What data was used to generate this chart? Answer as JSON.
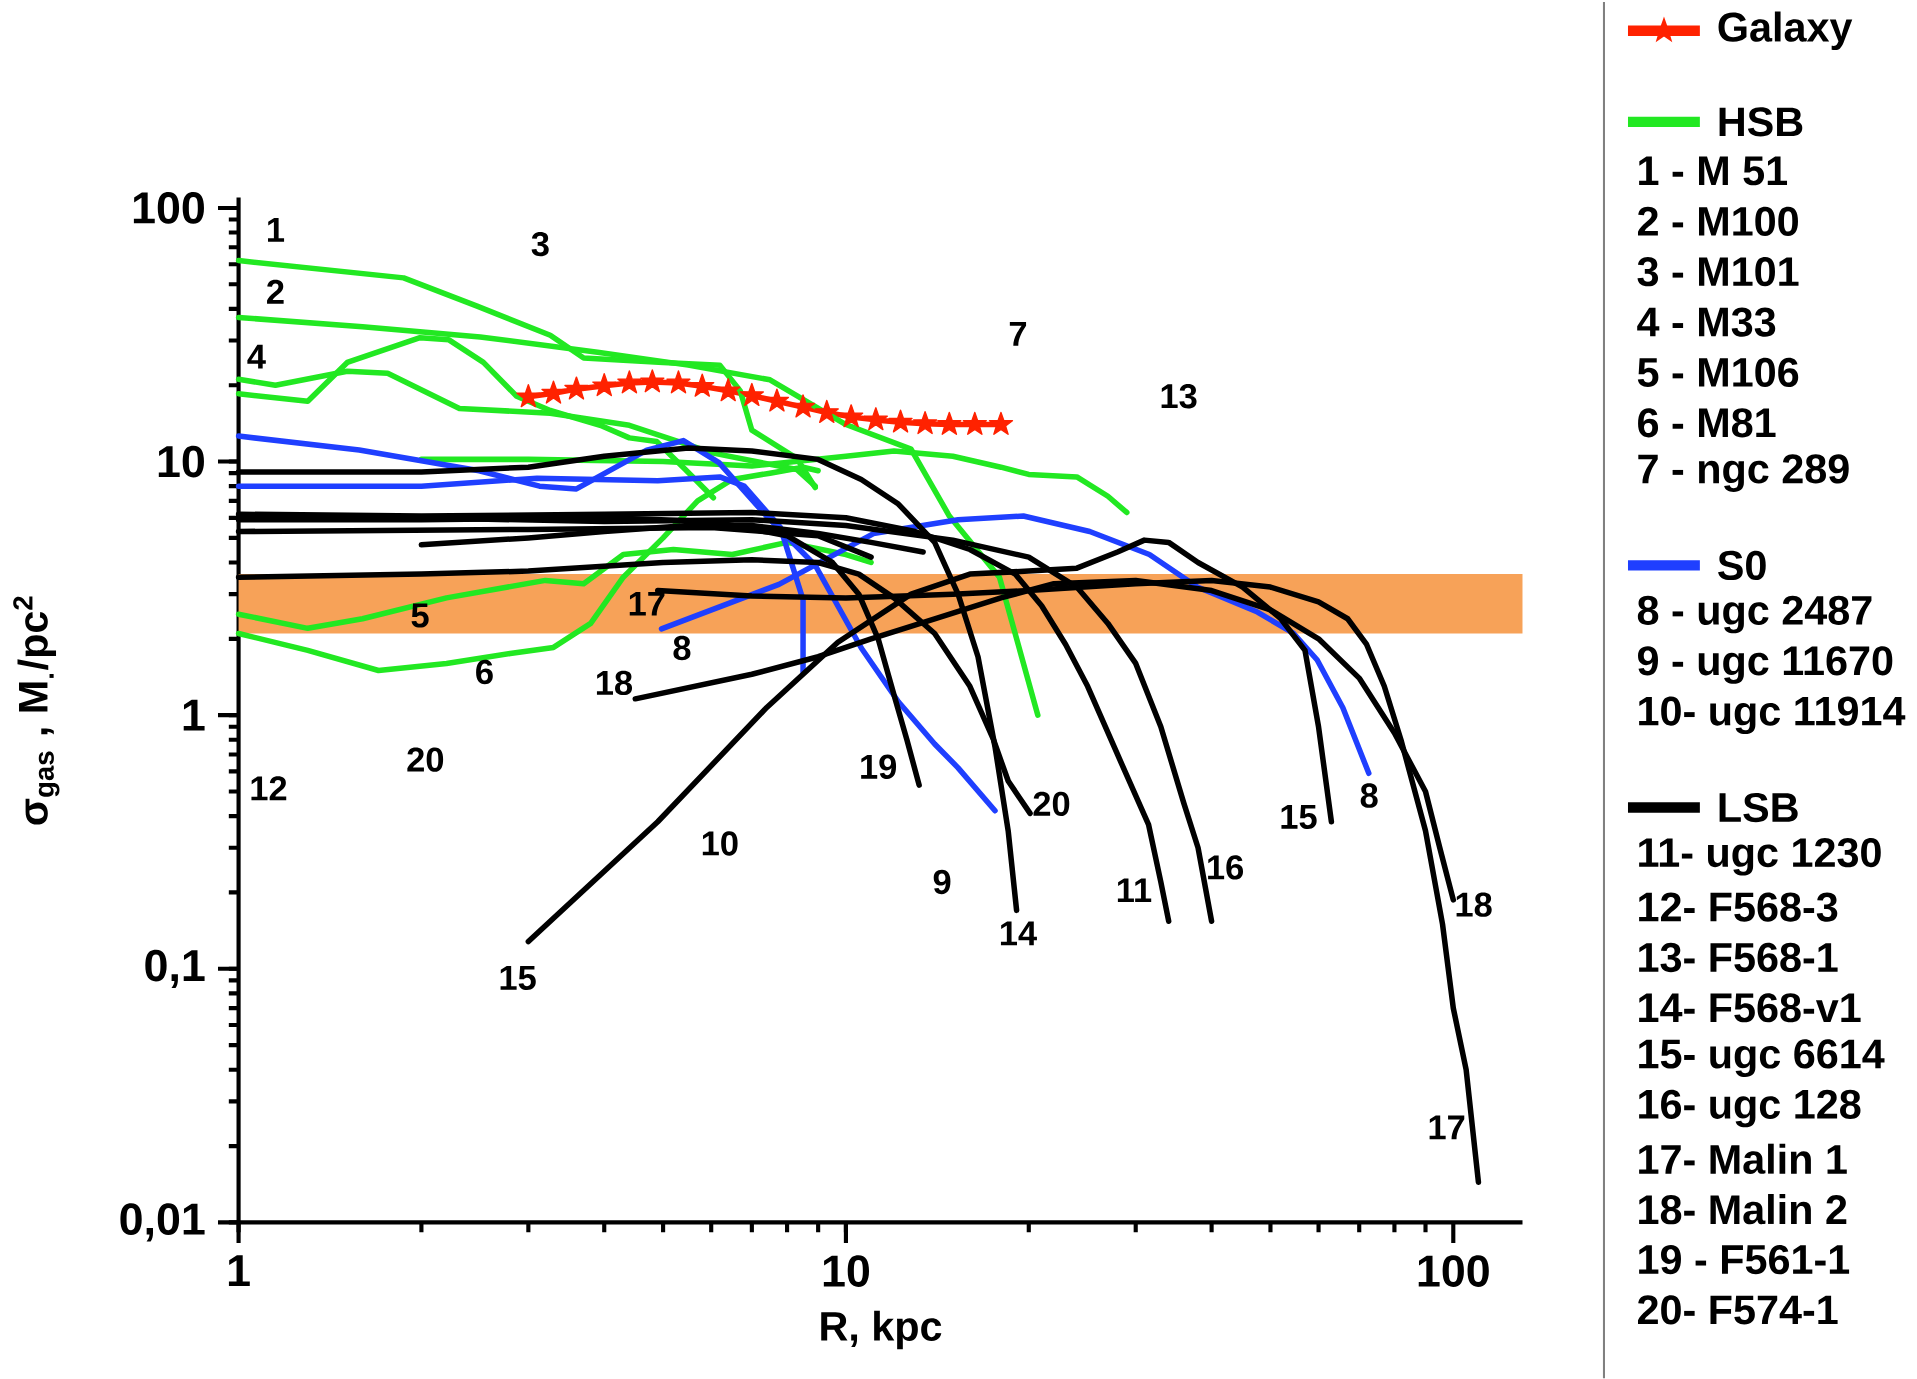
{
  "chart_data": {
    "type": "line",
    "xlabel": "R, kpc",
    "ylabel": "σ$_{gas}$ , M$_{.}$/pc$^{2}$",
    "log": "xy",
    "xlim": [
      1,
      130
    ],
    "ylim": [
      0.01,
      110
    ],
    "xticks": [
      1,
      10,
      100
    ],
    "yticks": [
      {
        "value": 0.01,
        "label": "0,01"
      },
      {
        "value": 0.1,
        "label": "0,1"
      },
      1,
      10,
      100
    ],
    "legend": "right",
    "bands": [
      {
        "axis": "y",
        "from": 2.1,
        "to": 3.6,
        "color": "#f7a258"
      }
    ],
    "series": [
      {
        "name": "Galaxy",
        "color": "#ff2200",
        "marker": "star",
        "x": [
          3,
          3.3,
          3.6,
          4,
          4.4,
          4.8,
          5.3,
          5.8,
          6.4,
          7,
          7.7,
          8.5,
          9.3,
          10.2,
          11.2,
          12.3,
          13.5,
          14.8,
          16.3,
          18
        ],
        "values": [
          18,
          18.6,
          19.3,
          19.9,
          20.4,
          20.6,
          20.4,
          19.8,
          19,
          18.2,
          17.3,
          16.4,
          15.6,
          15,
          14.6,
          14.3,
          14.1,
          14,
          14,
          14
        ]
      },
      {
        "name": "HSB",
        "color": "#22e822",
        "x": [
          1,
          1.87,
          2.47,
          3.26,
          3.7,
          5,
          6.2,
          6.7,
          7,
          8.3,
          8.9
        ],
        "values": [
          62,
          53,
          41,
          31.5,
          25.6,
          24.6,
          24,
          19,
          13.3,
          10.3,
          7.9
        ]
      },
      {
        "color": "#22e822",
        "x": [
          1,
          1.6,
          2.5,
          3.9,
          5.5,
          7.5,
          10,
          12.8,
          14.8,
          17.9,
          20.7
        ],
        "values": [
          37,
          34,
          31,
          27,
          24,
          21,
          14,
          11.2,
          6.1,
          3.5,
          1.0
        ]
      },
      {
        "color": "#22e822",
        "x": [
          1,
          1.3,
          1.51,
          1.99,
          2.22,
          2.53,
          2.87,
          3.26,
          3.94,
          4.4,
          4.88,
          5.44,
          6.05
        ],
        "values": [
          18.5,
          17.3,
          24.6,
          30.8,
          30.2,
          24.6,
          18.1,
          15.9,
          13.9,
          12.4,
          12,
          9.3,
          7.2
        ]
      },
      {
        "color": "#22e822",
        "x": [
          1,
          1.15,
          1.51,
          1.76,
          2.31,
          3.26,
          4.4,
          6.05,
          8.3,
          8.9
        ],
        "values": [
          21.1,
          20,
          22.7,
          22.3,
          16.2,
          15.5,
          13.9,
          10.8,
          9.3,
          8
        ]
      },
      {
        "color": "#22e822",
        "x": [
          1,
          1.3,
          1.6,
          2.2,
          3.2,
          3.7,
          4.3,
          5.2,
          6.5,
          8,
          10,
          11
        ],
        "values": [
          2.5,
          2.2,
          2.4,
          2.9,
          3.4,
          3.3,
          4.3,
          4.5,
          4.3,
          4.8,
          4.3,
          4.0
        ]
      },
      {
        "color": "#22e822",
        "x": [
          1,
          1.3,
          1.7,
          2.2,
          2.8,
          3.3,
          3.8,
          4.3,
          5,
          5.7,
          6.5,
          7.5,
          8.5,
          9
        ],
        "values": [
          2.1,
          1.8,
          1.5,
          1.6,
          1.75,
          1.85,
          2.3,
          3.5,
          5,
          7,
          8.5,
          9,
          9.5,
          9.2
        ]
      },
      {
        "color": "#22e822",
        "x": [
          2,
          3,
          5,
          7,
          10,
          12,
          15,
          18,
          20,
          24,
          27,
          29
        ],
        "values": [
          10.2,
          10.2,
          10,
          9.6,
          10.5,
          11,
          10.5,
          9.5,
          8.9,
          8.7,
          7.3,
          6.3
        ]
      },
      {
        "name": "S0",
        "color": "#1f3fff",
        "x": [
          4.97,
          7.76,
          11.1,
          15.3,
          19.6,
          25.2,
          31.6,
          37.9,
          47.6,
          54.6,
          59.7,
          65.8,
          72.6
        ],
        "values": [
          2.19,
          3.28,
          5.2,
          5.9,
          6.1,
          5.3,
          4.3,
          3.2,
          2.55,
          2.1,
          1.65,
          1.07,
          0.59
        ]
      },
      {
        "color": "#1f3fff",
        "x": [
          1,
          1.58,
          2.49,
          3.13,
          3.6,
          4.7,
          5.4,
          6.18,
          7.4,
          8.9,
          10.6,
          12.2,
          14,
          15.3,
          17.6
        ],
        "values": [
          12.6,
          11.1,
          9.2,
          8,
          7.8,
          11.1,
          12.1,
          9.9,
          6.1,
          3.9,
          1.84,
          1.13,
          0.77,
          0.62,
          0.42
        ]
      },
      {
        "color": "#1f3fff",
        "x": [
          1,
          2,
          3.1,
          4.9,
          6.2,
          6.8,
          7.8,
          8.5,
          8.5
        ],
        "values": [
          8,
          8,
          8.6,
          8.4,
          8.7,
          8,
          5.5,
          2.85,
          1.48
        ]
      },
      {
        "name": "LSB",
        "color": "#000000",
        "x": [
          1,
          2,
          4,
          7,
          10,
          13,
          16,
          19,
          21,
          23,
          25,
          28,
          31.5,
          33,
          34
        ],
        "values": [
          6.2,
          6.1,
          6.2,
          6.3,
          6,
          5.3,
          4.5,
          3.6,
          2.7,
          1.9,
          1.3,
          0.7,
          0.37,
          0.22,
          0.154
        ]
      },
      {
        "color": "#000000",
        "x": [
          1,
          3,
          6,
          9,
          11
        ],
        "values": [
          5.3,
          5.4,
          5.5,
          5.1,
          4.2
        ]
      },
      {
        "color": "#000000",
        "x": [
          2,
          3,
          4,
          5.5,
          7,
          9,
          11,
          13.4
        ],
        "values": [
          4.7,
          5,
          5.3,
          5.6,
          5.6,
          5.2,
          4.8,
          4.4
        ]
      },
      {
        "color": "#000000",
        "x": [
          1,
          2,
          3,
          4,
          5.5,
          7,
          9,
          10.6,
          12.2,
          14,
          15.3,
          16.5,
          17.6,
          18.5,
          19.1
        ],
        "values": [
          9.1,
          9.1,
          9.5,
          10.5,
          11.3,
          11,
          10.2,
          8.5,
          6.8,
          4.8,
          3,
          1.7,
          0.75,
          0.35,
          0.17
        ]
      },
      {
        "color": "#000000",
        "x": [
          3,
          4.9,
          7.4,
          9.7,
          12.8,
          16,
          20,
          24,
          28,
          31,
          34,
          38,
          45,
          52,
          57,
          60,
          63
        ],
        "values": [
          0.128,
          0.38,
          1.07,
          1.94,
          3,
          3.6,
          3.7,
          3.8,
          4.4,
          4.9,
          4.8,
          4,
          3.2,
          2.4,
          1.8,
          0.9,
          0.38
        ]
      },
      {
        "color": "#000000",
        "x": [
          1,
          2,
          4,
          7,
          10,
          15,
          20,
          24,
          27,
          30,
          33,
          36,
          38,
          40
        ],
        "values": [
          6,
          6,
          5.8,
          5.9,
          5.6,
          4.9,
          4.2,
          3.2,
          2.3,
          1.6,
          0.9,
          0.45,
          0.3,
          0.154
        ]
      },
      {
        "color": "#000000",
        "x": [
          4.9,
          7,
          10,
          15,
          20,
          30,
          40,
          50,
          60,
          67,
          72,
          77,
          82,
          90,
          96,
          100,
          105,
          110
        ],
        "values": [
          3.1,
          2.95,
          2.9,
          3,
          3.1,
          3.3,
          3.4,
          3.2,
          2.8,
          2.4,
          1.9,
          1.3,
          0.8,
          0.35,
          0.15,
          0.07,
          0.04,
          0.0144
        ]
      },
      {
        "color": "#000000",
        "x": [
          4.5,
          7,
          9,
          11,
          14,
          18,
          22,
          30,
          40,
          50,
          60,
          70,
          80,
          90,
          95,
          100
        ],
        "values": [
          1.16,
          1.45,
          1.7,
          2,
          2.4,
          2.9,
          3.3,
          3.4,
          3.1,
          2.6,
          2,
          1.4,
          0.85,
          0.5,
          0.3,
          0.187
        ]
      },
      {
        "color": "#000000",
        "x": [
          1,
          2,
          4,
          6,
          8,
          9.5,
          10.5,
          11.3,
          12,
          12.6,
          13.2
        ],
        "values": [
          5.9,
          5.9,
          6,
          5.8,
          5.1,
          4,
          3,
          2,
          1.2,
          0.8,
          0.53
        ]
      },
      {
        "color": "#000000",
        "x": [
          1,
          2,
          3,
          5,
          7,
          9,
          10.5,
          12,
          14,
          16,
          17.5,
          18.5,
          20.1
        ],
        "values": [
          3.5,
          3.6,
          3.7,
          4,
          4.1,
          4,
          3.6,
          2.9,
          2.1,
          1.3,
          0.8,
          0.55,
          0.41
        ]
      }
    ],
    "annotations": [
      "1 - M 51",
      "2 - M100",
      "3 - M101",
      "4 - M33",
      "5 - M106",
      "6 - M81",
      "7 - ngc 289",
      "8 - ugc 2487",
      "9 - ugc 11670",
      "10- ugc 11914",
      "11- ugc 1230",
      "12- F568-3",
      "13- F568-1",
      "14- F568-v1",
      "15- ugc 6614",
      "16- ugc 128",
      "17- Malin 1",
      "18- Malin 2",
      "19 - F561-1",
      "20- F574-1",
      "1",
      "2",
      "4",
      "3",
      "7",
      "13",
      "5",
      "17",
      "8",
      "6",
      "18",
      "20",
      "12",
      "19",
      "20",
      "10",
      "9",
      "14",
      "11",
      "16",
      "15",
      "8",
      "18",
      "17",
      "15"
    ]
  }
}
